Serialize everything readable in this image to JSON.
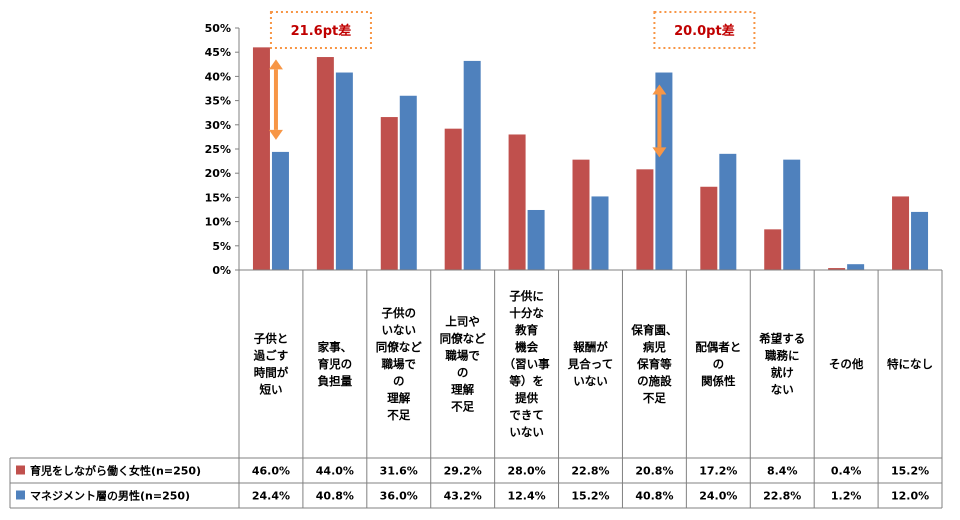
{
  "chart_data": {
    "type": "bar",
    "categories": [
      [
        "子供と",
        "過ごす",
        "時間が",
        "短い"
      ],
      [
        "家事、",
        "育児の",
        "負担量"
      ],
      [
        "子供の",
        "いない",
        "同僚など",
        "職場で",
        "の",
        "理解",
        "不足"
      ],
      [
        "上司や",
        "同僚など",
        "職場で",
        "の",
        "理解",
        "不足"
      ],
      [
        "子供に",
        "十分な",
        "教育",
        "機会",
        "（習い事",
        "等）を",
        "提供",
        "できて",
        "いない"
      ],
      [
        "報酬が",
        "見合って",
        "いない"
      ],
      [
        "保育園、",
        "病児",
        "保育等",
        "の施設",
        "不足"
      ],
      [
        "配偶者と",
        "の",
        "関係性"
      ],
      [
        "希望する",
        "職務に",
        "就け",
        "ない"
      ],
      [
        "その他"
      ],
      [
        "特になし"
      ]
    ],
    "series": [
      {
        "name": "育児をしながら働く女性(n=250)",
        "color": "#c0504d",
        "values": [
          46.0,
          44.0,
          31.6,
          29.2,
          28.0,
          22.8,
          20.8,
          17.2,
          8.4,
          0.4,
          15.2
        ],
        "labels": [
          "46.0%",
          "44.0%",
          "31.6%",
          "29.2%",
          "28.0%",
          "22.8%",
          "20.8%",
          "17.2%",
          "8.4%",
          "0.4%",
          "15.2%"
        ]
      },
      {
        "name": "マネジメント層の男性(n=250)",
        "color": "#4f81bd",
        "values": [
          24.4,
          40.8,
          36.0,
          43.2,
          12.4,
          15.2,
          40.8,
          24.0,
          22.8,
          1.2,
          12.0
        ],
        "labels": [
          "24.4%",
          "40.8%",
          "36.0%",
          "43.2%",
          "12.4%",
          "15.2%",
          "40.8%",
          "24.0%",
          "22.8%",
          "1.2%",
          "12.0%"
        ]
      }
    ],
    "ylim": [
      0,
      50
    ],
    "yticks": [
      "0%",
      "5%",
      "10%",
      "15%",
      "20%",
      "25%",
      "30%",
      "35%",
      "40%",
      "45%",
      "50%"
    ],
    "grid": false,
    "legend": "data-table",
    "annotations": [
      {
        "text": "21.6pt差",
        "category_index": 0,
        "from": 46.0,
        "to": 24.4,
        "color": "#f79646",
        "text_color": "#c00000"
      },
      {
        "text": "20.0pt差",
        "category_index": 6,
        "from": 40.8,
        "to": 20.8,
        "color": "#f79646",
        "text_color": "#c00000"
      }
    ]
  }
}
